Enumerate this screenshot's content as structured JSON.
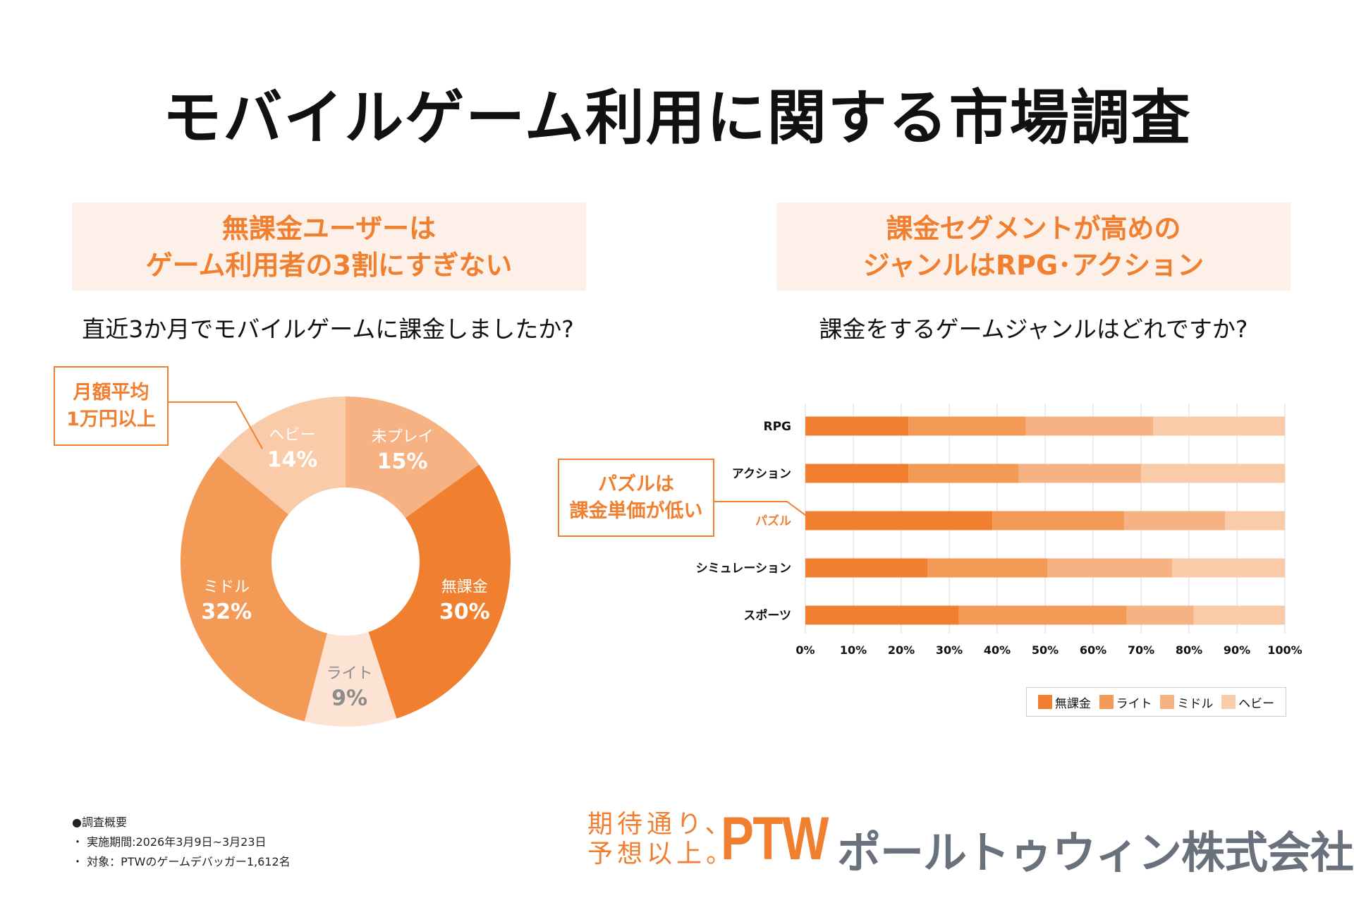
{
  "title": "モバイルゲーム利用に関する市場調査",
  "left_panel": {
    "headline_line1": "無課金ユーザーは",
    "headline_line2": "ゲーム利用者の3割にすぎない",
    "question": "直近3か月でモバイルゲームに課金しましたか?",
    "callout_line1": "月額平均",
    "callout_line2": "1万円以上"
  },
  "right_panel": {
    "headline_line1": "課金セグメントが高めの",
    "headline_line2": "ジャンルはRPG･アクション",
    "question": "課金をするゲームジャンルはどれですか?",
    "callout_line1": "パズルは",
    "callout_line2": "課金単価が低い"
  },
  "chart_data": [
    {
      "type": "pie",
      "donut": true,
      "start": "12 o'clock, clockwise",
      "slices": [
        {
          "label": "未プレイ",
          "value": 15,
          "display": "15%",
          "color": "#F6B283",
          "text_color": "#ffffff"
        },
        {
          "label": "無課金",
          "value": 30,
          "display": "30%",
          "color": "#F08030",
          "text_color": "#ffffff"
        },
        {
          "label": "ライト",
          "value": 9,
          "display": "9%",
          "color": "#FCE3D3",
          "text_color": "#8C8C8C"
        },
        {
          "label": "ミドル",
          "value": 32,
          "display": "32%",
          "color": "#F39A57",
          "text_color": "#ffffff"
        },
        {
          "label": "ヘビー",
          "value": 14,
          "display": "14%",
          "color": "#F9CBA8",
          "text_color": "#ffffff"
        }
      ]
    },
    {
      "type": "bar",
      "orientation": "horizontal",
      "stacked": "100%",
      "categories": [
        "RPG",
        "アクション",
        "パズル",
        "シミュレーション",
        "スポーツ"
      ],
      "highlight_category": "パズル",
      "highlight_color": "#F08030",
      "series": [
        {
          "name": "無課金",
          "color": "#F08030",
          "values": [
            21.5,
            21.5,
            39,
            25.5,
            32
          ]
        },
        {
          "name": "ライト",
          "color": "#F39A57",
          "values": [
            24.5,
            23,
            27.5,
            25,
            35
          ]
        },
        {
          "name": "ミドル",
          "color": "#F6B283",
          "values": [
            26.5,
            25.5,
            21,
            26,
            14
          ]
        },
        {
          "name": "ヘビー",
          "color": "#F9CBA8",
          "values": [
            27.5,
            30,
            12.5,
            23.5,
            19
          ]
        }
      ],
      "xlim": [
        0,
        100
      ],
      "xticks": [
        "0%",
        "10%",
        "20%",
        "30%",
        "40%",
        "50%",
        "60%",
        "70%",
        "80%",
        "90%",
        "100%"
      ],
      "grid": "vertical",
      "legend": "bottom-right"
    }
  ],
  "survey_notes": {
    "heading": "●調査概要",
    "period": "・ 実施期間:2026年3月9日~3月23日",
    "target": "・ 対象：PTWのゲームデバッガー1,612名"
  },
  "footer": {
    "tagline_line1": "期待通り、",
    "tagline_line2": "予想以上。",
    "logo": "PTW",
    "company": "ポールトゥウィン株式会社"
  },
  "colors": {
    "accent": "#F08030",
    "header_bg": "#FDF0E8",
    "company_gray": "#69727C"
  }
}
